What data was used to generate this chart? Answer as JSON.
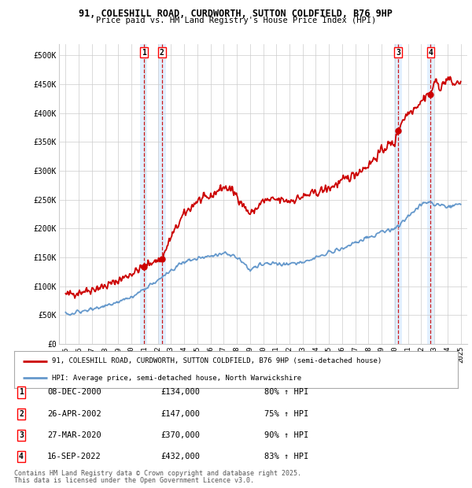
{
  "title_line1": "91, COLESHILL ROAD, CURDWORTH, SUTTON COLDFIELD, B76 9HP",
  "title_line2": "Price paid vs. HM Land Registry's House Price Index (HPI)",
  "legend_line1": "91, COLESHILL ROAD, CURDWORTH, SUTTON COLDFIELD, B76 9HP (semi-detached house)",
  "legend_line2": "HPI: Average price, semi-detached house, North Warwickshire",
  "footer_line1": "Contains HM Land Registry data © Crown copyright and database right 2025.",
  "footer_line2": "This data is licensed under the Open Government Licence v3.0.",
  "price_color": "#cc0000",
  "hpi_color": "#6699cc",
  "vline_color": "#cc0000",
  "vshade_color": "#ddeeff",
  "grid_color": "#cccccc",
  "background_color": "#ffffff",
  "transactions": [
    {
      "num": 1,
      "date": "2000-12-08",
      "price": 134000,
      "pct": "80%",
      "x_plot": 2000.94
    },
    {
      "num": 2,
      "date": "2002-04-26",
      "price": 147000,
      "pct": "75%",
      "x_plot": 2002.32
    },
    {
      "num": 3,
      "date": "2020-03-27",
      "price": 370000,
      "pct": "90%",
      "x_plot": 2020.24
    },
    {
      "num": 4,
      "date": "2022-09-16",
      "price": 432000,
      "pct": "83%",
      "x_plot": 2022.71
    }
  ],
  "table_rows": [
    {
      "num": 1,
      "date": "08-DEC-2000",
      "price": "£134,000",
      "pct": "80% ↑ HPI"
    },
    {
      "num": 2,
      "date": "26-APR-2002",
      "price": "£147,000",
      "pct": "75% ↑ HPI"
    },
    {
      "num": 3,
      "date": "27-MAR-2020",
      "price": "£370,000",
      "pct": "90% ↑ HPI"
    },
    {
      "num": 4,
      "date": "16-SEP-2022",
      "price": "£432,000",
      "pct": "83% ↑ HPI"
    }
  ],
  "ylim": [
    0,
    520000
  ],
  "yticks": [
    0,
    50000,
    100000,
    150000,
    200000,
    250000,
    300000,
    350000,
    400000,
    450000,
    500000
  ],
  "xlim": [
    1994.5,
    2025.5
  ],
  "xticks": [
    1995,
    1996,
    1997,
    1998,
    1999,
    2000,
    2001,
    2002,
    2003,
    2004,
    2005,
    2006,
    2007,
    2008,
    2009,
    2010,
    2011,
    2012,
    2013,
    2014,
    2015,
    2016,
    2017,
    2018,
    2019,
    2020,
    2021,
    2022,
    2023,
    2024,
    2025
  ]
}
